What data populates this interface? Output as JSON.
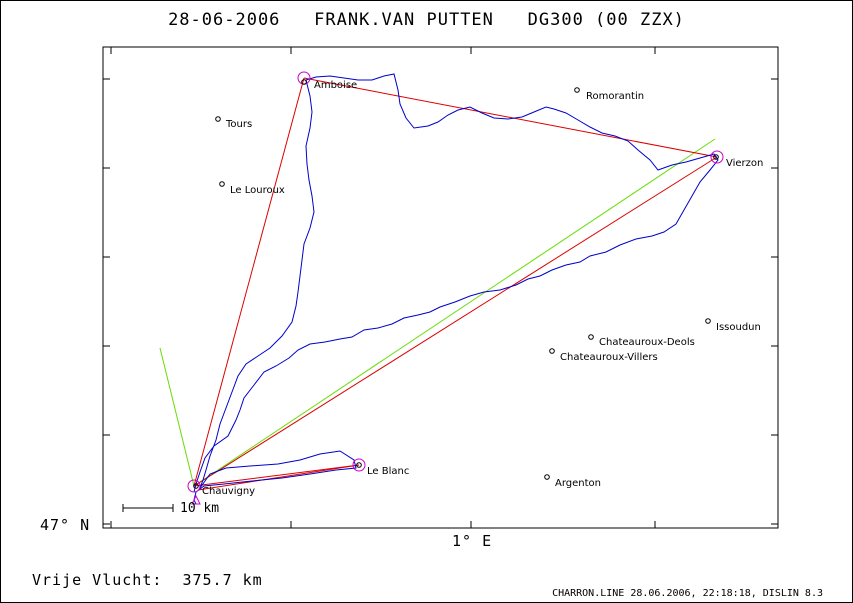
{
  "title": {
    "date": "28-06-2006",
    "pilot": "FRANK.VAN PUTTEN",
    "glider": "DG300 (00 ZZX)"
  },
  "axes": {
    "lat_label": "47° N",
    "lon_label": "1° E"
  },
  "scale_bar": {
    "label": "10 km"
  },
  "distance": {
    "label": "Vrije Vlucht:",
    "value": "375.7 km"
  },
  "footer": "CHARRON.LINE 28.06.2006, 22:18:18, DISLIN 8.3",
  "colors": {
    "track": "#0000cc",
    "task_line": "#dd0000",
    "reference_line": "#66dd00",
    "turnpoint_circle": "#cc00cc",
    "frame": "#000000"
  },
  "towns": [
    {
      "name": "Amboise",
      "turnpoint": true
    },
    {
      "name": "Romorantin",
      "turnpoint": false
    },
    {
      "name": "Tours",
      "turnpoint": false
    },
    {
      "name": "Le Louroux",
      "turnpoint": false
    },
    {
      "name": "Vierzon",
      "turnpoint": true
    },
    {
      "name": "Issoudun",
      "turnpoint": false
    },
    {
      "name": "Chateauroux-Deols",
      "turnpoint": false
    },
    {
      "name": "Chateauroux-Villers",
      "turnpoint": false
    },
    {
      "name": "Le Blanc",
      "turnpoint": true
    },
    {
      "name": "Argenton",
      "turnpoint": false
    },
    {
      "name": "Chauvigny",
      "turnpoint": true
    }
  ]
}
